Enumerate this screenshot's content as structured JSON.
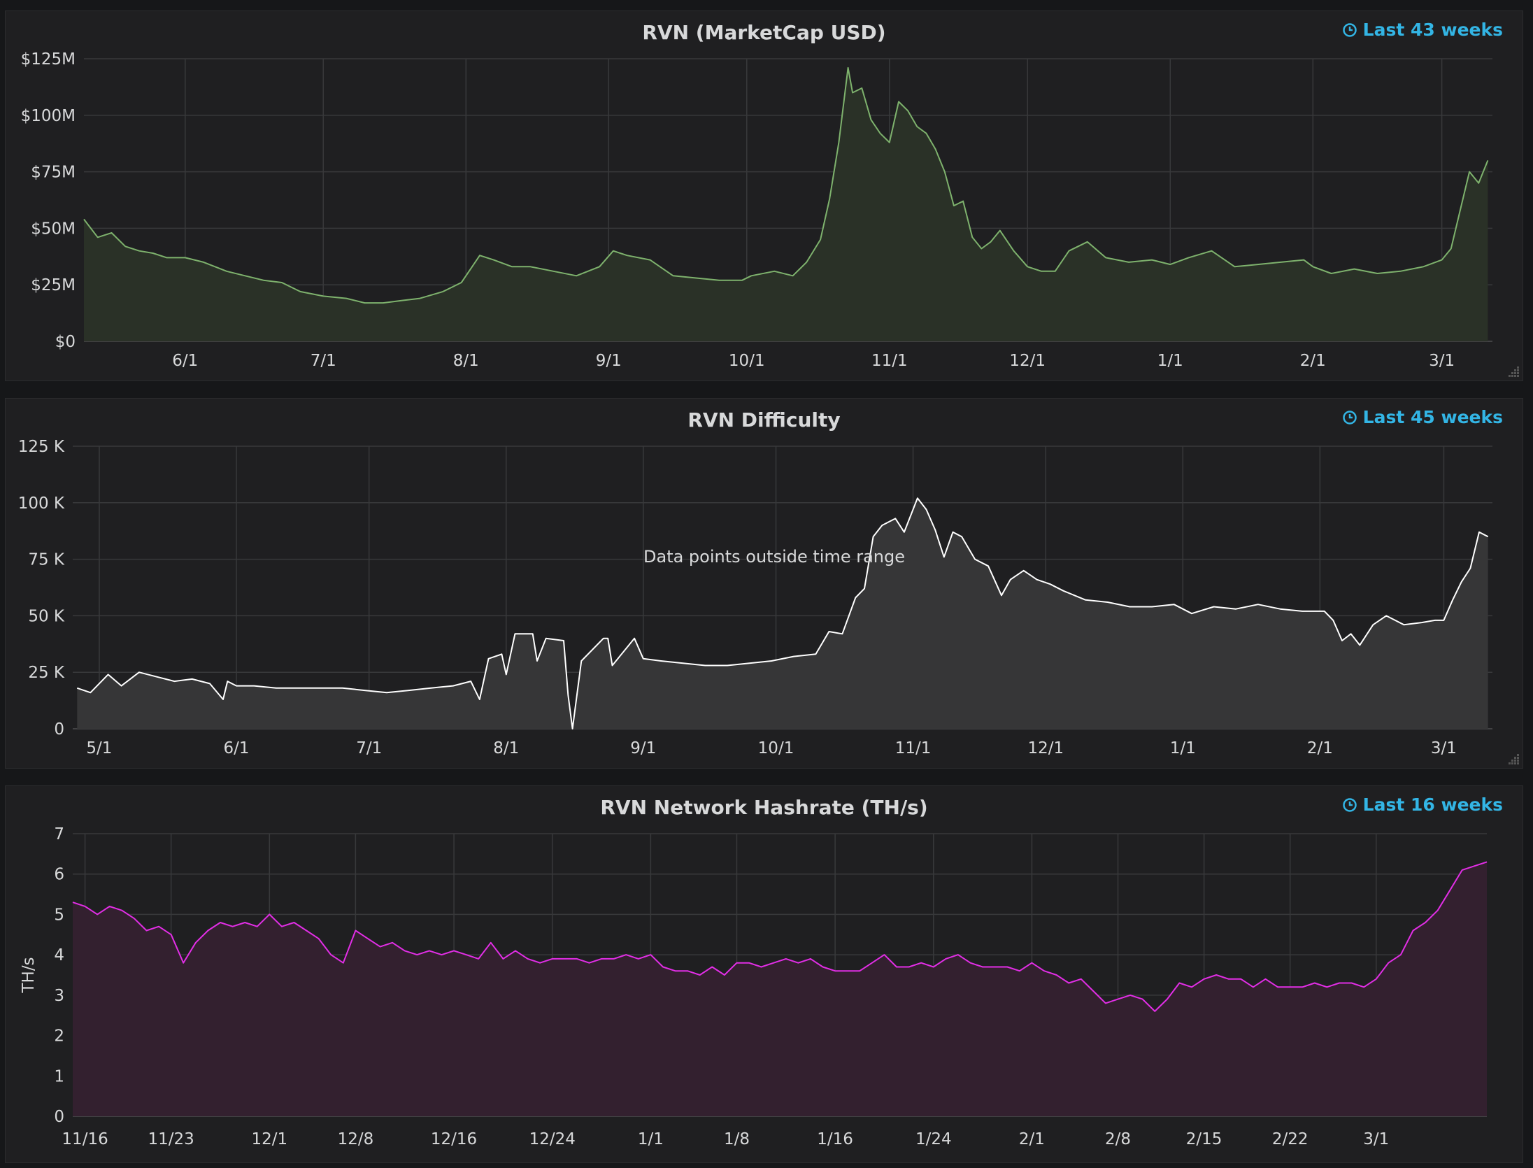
{
  "icons": {
    "clock": "clock-icon",
    "resize": "resize-handle-icon"
  },
  "panels": [
    {
      "id": "marketcap",
      "title": "RVN (MarketCap USD)",
      "time_info": "Last 43 weeks",
      "color": "#7eb26d",
      "fill": "#2a3127"
    },
    {
      "id": "difficulty",
      "title": "RVN Difficulty",
      "time_info": "Last 45 weeks",
      "message": "Data points outside time range",
      "color": "#ffffff",
      "fill": "#363637"
    },
    {
      "id": "hashrate",
      "title": "RVN Network Hashrate (TH/s)",
      "time_info": "Last 16 weeks",
      "color": "#e22ee6",
      "fill": "#33202f"
    }
  ],
  "chart_data": [
    {
      "type": "area",
      "title": "RVN (MarketCap USD)",
      "ylabel": "",
      "y_ticks": [
        {
          "v": 0,
          "label": "$0"
        },
        {
          "v": 25,
          "label": "$25M"
        },
        {
          "v": 50,
          "label": "$50M"
        },
        {
          "v": 75,
          "label": "$75M"
        },
        {
          "v": 100,
          "label": "$100M"
        },
        {
          "v": 125,
          "label": "$125M"
        }
      ],
      "ylim": [
        0,
        125
      ],
      "xlim": [
        "2018-05-10",
        "2019-03-12"
      ],
      "x_ticks": [
        {
          "x": "2018-06-01",
          "label": "6/1"
        },
        {
          "x": "2018-07-01",
          "label": "7/1"
        },
        {
          "x": "2018-08-01",
          "label": "8/1"
        },
        {
          "x": "2018-09-01",
          "label": "9/1"
        },
        {
          "x": "2018-10-01",
          "label": "10/1"
        },
        {
          "x": "2018-11-01",
          "label": "11/1"
        },
        {
          "x": "2018-12-01",
          "label": "12/1"
        },
        {
          "x": "2019-01-01",
          "label": "1/1"
        },
        {
          "x": "2019-02-01",
          "label": "2/1"
        },
        {
          "x": "2019-03-01",
          "label": "3/1"
        }
      ],
      "grid": true,
      "series": [
        {
          "x": [
            "2018-05-10",
            "2018-05-13",
            "2018-05-16",
            "2018-05-19",
            "2018-05-22",
            "2018-05-25",
            "2018-05-28",
            "2018-06-01",
            "2018-06-05",
            "2018-06-10",
            "2018-06-14",
            "2018-06-18",
            "2018-06-22",
            "2018-06-26",
            "2018-07-01",
            "2018-07-06",
            "2018-07-10",
            "2018-07-14",
            "2018-07-18",
            "2018-07-22",
            "2018-07-27",
            "2018-07-31",
            "2018-08-01",
            "2018-08-04",
            "2018-08-07",
            "2018-08-11",
            "2018-08-15",
            "2018-08-20",
            "2018-08-25",
            "2018-08-30",
            "2018-09-02",
            "2018-09-05",
            "2018-09-10",
            "2018-09-15",
            "2018-09-20",
            "2018-09-25",
            "2018-09-30",
            "2018-10-02",
            "2018-10-07",
            "2018-10-11",
            "2018-10-14",
            "2018-10-17",
            "2018-10-19",
            "2018-10-21",
            "2018-10-23",
            "2018-10-24",
            "2018-10-26",
            "2018-10-28",
            "2018-10-30",
            "2018-11-01",
            "2018-11-03",
            "2018-11-05",
            "2018-11-07",
            "2018-11-09",
            "2018-11-11",
            "2018-11-13",
            "2018-11-15",
            "2018-11-17",
            "2018-11-19",
            "2018-11-21",
            "2018-11-23",
            "2018-11-25",
            "2018-11-28",
            "2018-12-01",
            "2018-12-04",
            "2018-12-07",
            "2018-12-10",
            "2018-12-14",
            "2018-12-18",
            "2018-12-23",
            "2018-12-28",
            "2019-01-01",
            "2019-01-05",
            "2019-01-10",
            "2019-01-15",
            "2019-01-20",
            "2019-01-25",
            "2019-01-30",
            "2019-02-01",
            "2019-02-05",
            "2019-02-10",
            "2019-02-15",
            "2019-02-20",
            "2019-02-25",
            "2019-03-01",
            "2019-03-03",
            "2019-03-05",
            "2019-03-07",
            "2019-03-09",
            "2019-03-11"
          ],
          "values": [
            54,
            46,
            48,
            42,
            40,
            39,
            37,
            37,
            35,
            31,
            29,
            27,
            26,
            22,
            20,
            19,
            17,
            17,
            18,
            19,
            22,
            26,
            29,
            38,
            36,
            33,
            33,
            31,
            29,
            33,
            40,
            38,
            36,
            29,
            28,
            27,
            27,
            29,
            31,
            29,
            35,
            45,
            63,
            88,
            121,
            110,
            112,
            98,
            92,
            88,
            106,
            102,
            95,
            92,
            85,
            75,
            60,
            62,
            46,
            41,
            44,
            49,
            40,
            33,
            31,
            31,
            40,
            44,
            37,
            35,
            36,
            34,
            37,
            40,
            33,
            34,
            35,
            36,
            33,
            30,
            32,
            30,
            31,
            33,
            36,
            41,
            58,
            75,
            70,
            80
          ]
        }
      ]
    },
    {
      "type": "area",
      "title": "RVN Difficulty",
      "ylabel": "",
      "y_ticks": [
        {
          "v": 0,
          "label": "0"
        },
        {
          "v": 25,
          "label": "25 K"
        },
        {
          "v": 50,
          "label": "50 K"
        },
        {
          "v": 75,
          "label": "75 K"
        },
        {
          "v": 100,
          "label": "100 K"
        },
        {
          "v": 125,
          "label": "125 K"
        }
      ],
      "ylim": [
        0,
        125
      ],
      "xlim": [
        "2018-04-25",
        "2019-03-12"
      ],
      "x_ticks": [
        {
          "x": "2018-05-01",
          "label": "5/1"
        },
        {
          "x": "2018-06-01",
          "label": "6/1"
        },
        {
          "x": "2018-07-01",
          "label": "7/1"
        },
        {
          "x": "2018-08-01",
          "label": "8/1"
        },
        {
          "x": "2018-09-01",
          "label": "9/1"
        },
        {
          "x": "2018-10-01",
          "label": "10/1"
        },
        {
          "x": "2018-11-01",
          "label": "11/1"
        },
        {
          "x": "2018-12-01",
          "label": "12/1"
        },
        {
          "x": "2019-01-01",
          "label": "1/1"
        },
        {
          "x": "2019-02-01",
          "label": "2/1"
        },
        {
          "x": "2019-03-01",
          "label": "3/1"
        }
      ],
      "grid": true,
      "series": [
        {
          "x": [
            "2018-04-26",
            "2018-04-29",
            "2018-05-03",
            "2018-05-06",
            "2018-05-10",
            "2018-05-14",
            "2018-05-18",
            "2018-05-22",
            "2018-05-26",
            "2018-05-29",
            "2018-05-30",
            "2018-06-01",
            "2018-06-05",
            "2018-06-10",
            "2018-06-15",
            "2018-06-20",
            "2018-06-25",
            "2018-06-30",
            "2018-07-05",
            "2018-07-10",
            "2018-07-15",
            "2018-07-20",
            "2018-07-24",
            "2018-07-26",
            "2018-07-28",
            "2018-07-31",
            "2018-08-01",
            "2018-08-03",
            "2018-08-07",
            "2018-08-08",
            "2018-08-10",
            "2018-08-14",
            "2018-08-15",
            "2018-08-16",
            "2018-08-18",
            "2018-08-23",
            "2018-08-24",
            "2018-08-25",
            "2018-08-30",
            "2018-09-01",
            "2018-09-05",
            "2018-09-10",
            "2018-09-15",
            "2018-09-20",
            "2018-09-25",
            "2018-09-30",
            "2018-10-05",
            "2018-10-10",
            "2018-10-13",
            "2018-10-16",
            "2018-10-19",
            "2018-10-21",
            "2018-10-23",
            "2018-10-25",
            "2018-10-28",
            "2018-10-30",
            "2018-11-02",
            "2018-11-04",
            "2018-11-06",
            "2018-11-08",
            "2018-11-10",
            "2018-11-12",
            "2018-11-15",
            "2018-11-18",
            "2018-11-21",
            "2018-11-23",
            "2018-11-26",
            "2018-11-29",
            "2018-12-02",
            "2018-12-05",
            "2018-12-10",
            "2018-12-15",
            "2018-12-20",
            "2018-12-25",
            "2018-12-30",
            "2019-01-03",
            "2019-01-08",
            "2019-01-13",
            "2019-01-18",
            "2019-01-23",
            "2019-01-28",
            "2019-02-02",
            "2019-02-04",
            "2019-02-06",
            "2019-02-08",
            "2019-02-10",
            "2019-02-13",
            "2019-02-16",
            "2019-02-20",
            "2019-02-24",
            "2019-02-27",
            "2019-03-01",
            "2019-03-03",
            "2019-03-05",
            "2019-03-07",
            "2019-03-09",
            "2019-03-11"
          ],
          "values": [
            18,
            16,
            24,
            19,
            25,
            23,
            21,
            22,
            20,
            13,
            21,
            19,
            19,
            18,
            18,
            18,
            18,
            17,
            16,
            17,
            18,
            19,
            21,
            13,
            31,
            33,
            24,
            42,
            42,
            30,
            40,
            39,
            15,
            0,
            30,
            40,
            40,
            28,
            40,
            31,
            30,
            29,
            28,
            28,
            29,
            30,
            32,
            33,
            43,
            42,
            58,
            62,
            85,
            90,
            93,
            87,
            102,
            97,
            88,
            76,
            87,
            85,
            75,
            72,
            59,
            66,
            70,
            66,
            64,
            61,
            57,
            56,
            54,
            54,
            55,
            51,
            54,
            53,
            55,
            53,
            52,
            52,
            48,
            39,
            42,
            37,
            46,
            50,
            46,
            47,
            48,
            48,
            57,
            65,
            71,
            87,
            85
          ]
        }
      ]
    },
    {
      "type": "area",
      "title": "RVN Network Hashrate (TH/s)",
      "ylabel": "TH/s",
      "y_ticks": [
        {
          "v": 0,
          "label": "0"
        },
        {
          "v": 1,
          "label": "1"
        },
        {
          "v": 2,
          "label": "2"
        },
        {
          "v": 3,
          "label": "3"
        },
        {
          "v": 4,
          "label": "4"
        },
        {
          "v": 5,
          "label": "5"
        },
        {
          "v": 6,
          "label": "6"
        },
        {
          "v": 7,
          "label": "7"
        }
      ],
      "ylim": [
        0,
        7
      ],
      "xlim": [
        "2018-11-15",
        "2019-03-10"
      ],
      "x_ticks": [
        {
          "x": "2018-11-16",
          "label": "11/16"
        },
        {
          "x": "2018-11-23",
          "label": "11/23"
        },
        {
          "x": "2018-12-01",
          "label": "12/1"
        },
        {
          "x": "2018-12-08",
          "label": "12/8"
        },
        {
          "x": "2018-12-16",
          "label": "12/16"
        },
        {
          "x": "2018-12-24",
          "label": "12/24"
        },
        {
          "x": "2019-01-01",
          "label": "1/1"
        },
        {
          "x": "2019-01-08",
          "label": "1/8"
        },
        {
          "x": "2019-01-16",
          "label": "1/16"
        },
        {
          "x": "2019-01-24",
          "label": "1/24"
        },
        {
          "x": "2019-02-01",
          "label": "2/1"
        },
        {
          "x": "2019-02-08",
          "label": "2/8"
        },
        {
          "x": "2019-02-15",
          "label": "2/15"
        },
        {
          "x": "2019-02-22",
          "label": "2/22"
        },
        {
          "x": "2019-03-01",
          "label": "3/1"
        }
      ],
      "grid": true,
      "series": [
        {
          "x": [
            "2018-11-15",
            "2018-11-16",
            "2018-11-17",
            "2018-11-18",
            "2018-11-19",
            "2018-11-20",
            "2018-11-21",
            "2018-11-22",
            "2018-11-23",
            "2018-11-24",
            "2018-11-25",
            "2018-11-26",
            "2018-11-27",
            "2018-11-28",
            "2018-11-29",
            "2018-11-30",
            "2018-12-01",
            "2018-12-02",
            "2018-12-03",
            "2018-12-04",
            "2018-12-05",
            "2018-12-06",
            "2018-12-07",
            "2018-12-08",
            "2018-12-09",
            "2018-12-10",
            "2018-12-11",
            "2018-12-12",
            "2018-12-13",
            "2018-12-14",
            "2018-12-15",
            "2018-12-16",
            "2018-12-17",
            "2018-12-18",
            "2018-12-19",
            "2018-12-20",
            "2018-12-21",
            "2018-12-22",
            "2018-12-23",
            "2018-12-24",
            "2018-12-25",
            "2018-12-26",
            "2018-12-27",
            "2018-12-28",
            "2018-12-29",
            "2018-12-30",
            "2018-12-31",
            "2019-01-01",
            "2019-01-02",
            "2019-01-03",
            "2019-01-04",
            "2019-01-05",
            "2019-01-06",
            "2019-01-07",
            "2019-01-08",
            "2019-01-09",
            "2019-01-10",
            "2019-01-11",
            "2019-01-12",
            "2019-01-13",
            "2019-01-14",
            "2019-01-15",
            "2019-01-16",
            "2019-01-17",
            "2019-01-18",
            "2019-01-19",
            "2019-01-20",
            "2019-01-21",
            "2019-01-22",
            "2019-01-23",
            "2019-01-24",
            "2019-01-25",
            "2019-01-26",
            "2019-01-27",
            "2019-01-28",
            "2019-01-29",
            "2019-01-30",
            "2019-01-31",
            "2019-02-01",
            "2019-02-02",
            "2019-02-03",
            "2019-02-04",
            "2019-02-05",
            "2019-02-06",
            "2019-02-07",
            "2019-02-08",
            "2019-02-09",
            "2019-02-10",
            "2019-02-11",
            "2019-02-12",
            "2019-02-13",
            "2019-02-14",
            "2019-02-15",
            "2019-02-16",
            "2019-02-17",
            "2019-02-18",
            "2019-02-19",
            "2019-02-20",
            "2019-02-21",
            "2019-02-22",
            "2019-02-23",
            "2019-02-24",
            "2019-02-25",
            "2019-02-26",
            "2019-02-27",
            "2019-02-28",
            "2019-03-01",
            "2019-03-02",
            "2019-03-03",
            "2019-03-04",
            "2019-03-05",
            "2019-03-06",
            "2019-03-07",
            "2019-03-08",
            "2019-03-09",
            "2019-03-10"
          ],
          "values": [
            5.3,
            5.2,
            5.0,
            5.2,
            5.1,
            4.9,
            4.6,
            4.7,
            4.5,
            3.8,
            4.3,
            4.6,
            4.8,
            4.7,
            4.8,
            4.7,
            5.0,
            4.7,
            4.8,
            4.6,
            4.4,
            4.0,
            3.8,
            4.6,
            4.4,
            4.2,
            4.3,
            4.1,
            4.0,
            4.1,
            4.0,
            4.1,
            4.0,
            3.9,
            4.3,
            3.9,
            4.1,
            3.9,
            3.8,
            3.9,
            3.9,
            3.9,
            3.8,
            3.9,
            3.9,
            4.0,
            3.9,
            4.0,
            3.7,
            3.6,
            3.6,
            3.5,
            3.7,
            3.5,
            3.8,
            3.8,
            3.7,
            3.8,
            3.9,
            3.8,
            3.9,
            3.7,
            3.6,
            3.6,
            3.6,
            3.8,
            4.0,
            3.7,
            3.7,
            3.8,
            3.7,
            3.9,
            4.0,
            3.8,
            3.7,
            3.7,
            3.7,
            3.6,
            3.8,
            3.6,
            3.5,
            3.3,
            3.4,
            3.1,
            2.8,
            2.9,
            3.0,
            2.9,
            2.6,
            2.9,
            3.3,
            3.2,
            3.4,
            3.5,
            3.4,
            3.4,
            3.2,
            3.4,
            3.2,
            3.2,
            3.2,
            3.3,
            3.2,
            3.3,
            3.3,
            3.2,
            3.4,
            3.8,
            4.0,
            4.6,
            4.8,
            5.1,
            5.6,
            6.1,
            6.2,
            6.3
          ]
        }
      ]
    }
  ]
}
